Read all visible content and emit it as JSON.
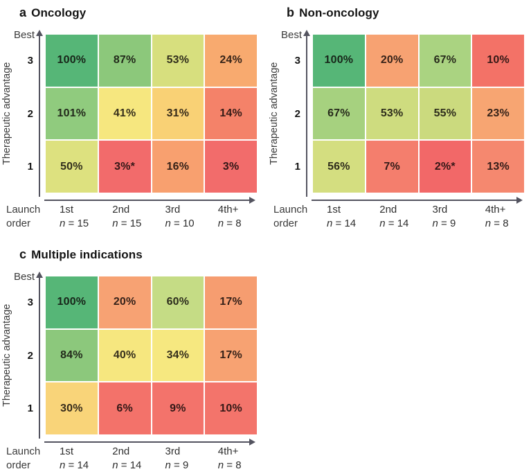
{
  "figure": {
    "axis_color": "#53535f",
    "background": "#ffffff"
  },
  "chart_data": [
    {
      "type": "heatmap",
      "panel": "a",
      "title": "Oncology",
      "xlabel": "Launch order",
      "ylabel": "Therapeutic advantage",
      "y_axis_top_annotation": "Best",
      "x_categories": [
        "1st (n = 15)",
        "2nd (n = 15)",
        "3rd (n = 10)",
        "4th+ (n = 8)"
      ],
      "y_categories": [
        "3",
        "2",
        "1"
      ],
      "values_percent": [
        [
          100,
          87,
          53,
          24
        ],
        [
          101,
          41,
          31,
          14
        ],
        [
          50,
          3,
          16,
          3
        ]
      ],
      "cell_labels": [
        [
          "100%",
          "87%",
          "53%",
          "24%"
        ],
        [
          "101%",
          "41%",
          "31%",
          "14%"
        ],
        [
          "50%",
          "3%*",
          "16%",
          "3%"
        ]
      ],
      "colorscale": "red-yellow-green increasing with value",
      "legend": "none"
    },
    {
      "type": "heatmap",
      "panel": "b",
      "title": "Non-oncology",
      "xlabel": "Launch order",
      "ylabel": "Therapeutic advantage",
      "y_axis_top_annotation": "Best",
      "x_categories": [
        "1st (n = 14)",
        "2nd (n = 14)",
        "3rd (n = 9)",
        "4th+ (n = 8)"
      ],
      "y_categories": [
        "3",
        "2",
        "1"
      ],
      "values_percent": [
        [
          100,
          20,
          67,
          10
        ],
        [
          67,
          53,
          55,
          23
        ],
        [
          56,
          7,
          2,
          13
        ]
      ],
      "cell_labels": [
        [
          "100%",
          "20%",
          "67%",
          "10%"
        ],
        [
          "67%",
          "53%",
          "55%",
          "23%"
        ],
        [
          "56%",
          "7%",
          "2%*",
          "13%"
        ]
      ],
      "colorscale": "red-yellow-green increasing with value",
      "legend": "none"
    },
    {
      "type": "heatmap",
      "panel": "c",
      "title": "Multiple indications",
      "xlabel": "Launch order",
      "ylabel": "Therapeutic advantage",
      "y_axis_top_annotation": "Best",
      "x_categories": [
        "1st (n = 14)",
        "2nd (n = 14)",
        "3rd (n = 9)",
        "4th+ (n = 8)"
      ],
      "y_categories": [
        "3",
        "2",
        "1"
      ],
      "values_percent": [
        [
          100,
          20,
          60,
          17
        ],
        [
          84,
          40,
          34,
          17
        ],
        [
          30,
          6,
          9,
          10
        ]
      ],
      "cell_labels": [
        [
          "100%",
          "20%",
          "60%",
          "17%"
        ],
        [
          "84%",
          "40%",
          "34%",
          "17%"
        ],
        [
          "30%",
          "6%",
          "9%",
          "10%"
        ]
      ],
      "colorscale": "red-yellow-green increasing with value",
      "legend": "none"
    }
  ],
  "panels": [
    {
      "letter": "a",
      "title": "Oncology",
      "best_label": "Best",
      "y_axis_label": "Therapeutic advantage",
      "y_ticks": [
        "3",
        "2",
        "1"
      ],
      "x_axis_label_line1": "Launch",
      "x_axis_label_line2": "order",
      "x_ticks": [
        {
          "rank": "1st",
          "n_var": "n",
          "n_eq": " = 15"
        },
        {
          "rank": "2nd",
          "n_var": "n",
          "n_eq": " = 15"
        },
        {
          "rank": "3rd",
          "n_var": "n",
          "n_eq": " = 10"
        },
        {
          "rank": "4th+",
          "n_var": "n",
          "n_eq": " = 8"
        }
      ],
      "rows": [
        {
          "cells": [
            {
              "label": "100%",
              "color": "#56b677"
            },
            {
              "label": "87%",
              "color": "#8cc87b"
            },
            {
              "label": "53%",
              "color": "#d7df7e"
            },
            {
              "label": "24%",
              "color": "#f8aa6f"
            }
          ]
        },
        {
          "cells": [
            {
              "label": "101%",
              "color": "#90cb7e"
            },
            {
              "label": "41%",
              "color": "#f6e77f"
            },
            {
              "label": "31%",
              "color": "#f9d175"
            },
            {
              "label": "14%",
              "color": "#f48269"
            }
          ]
        },
        {
          "cells": [
            {
              "label": "50%",
              "color": "#dde17f"
            },
            {
              "label": "3%*",
              "color": "#f26b6b"
            },
            {
              "label": "16%",
              "color": "#f8a06f"
            },
            {
              "label": "3%",
              "color": "#f26c6b"
            }
          ]
        }
      ]
    },
    {
      "letter": "b",
      "title": "Non-oncology",
      "best_label": "Best",
      "y_axis_label": "Therapeutic advantage",
      "y_ticks": [
        "3",
        "2",
        "1"
      ],
      "x_axis_label_line1": "Launch",
      "x_axis_label_line2": "order",
      "x_ticks": [
        {
          "rank": "1st",
          "n_var": "n",
          "n_eq": " = 14"
        },
        {
          "rank": "2nd",
          "n_var": "n",
          "n_eq": " = 14"
        },
        {
          "rank": "3rd",
          "n_var": "n",
          "n_eq": " = 9"
        },
        {
          "rank": "4th+",
          "n_var": "n",
          "n_eq": " = 8"
        }
      ],
      "rows": [
        {
          "cells": [
            {
              "label": "100%",
              "color": "#56b677"
            },
            {
              "label": "20%",
              "color": "#f7a272"
            },
            {
              "label": "67%",
              "color": "#aad381"
            },
            {
              "label": "10%",
              "color": "#f37267"
            }
          ]
        },
        {
          "cells": [
            {
              "label": "67%",
              "color": "#a6d17f"
            },
            {
              "label": "53%",
              "color": "#cedc7f"
            },
            {
              "label": "55%",
              "color": "#cbda7e"
            },
            {
              "label": "23%",
              "color": "#f7a572"
            }
          ]
        },
        {
          "cells": [
            {
              "label": "56%",
              "color": "#d4de80"
            },
            {
              "label": "7%",
              "color": "#f47e6d"
            },
            {
              "label": "2%*",
              "color": "#f26868"
            },
            {
              "label": "13%",
              "color": "#f5886f"
            }
          ]
        }
      ]
    },
    {
      "letter": "c",
      "title": "Multiple indications",
      "best_label": "Best",
      "y_axis_label": "Therapeutic advantage",
      "y_ticks": [
        "3",
        "2",
        "1"
      ],
      "x_axis_label_line1": "Launch",
      "x_axis_label_line2": "order",
      "x_ticks": [
        {
          "rank": "1st",
          "n_var": "n",
          "n_eq": " = 14"
        },
        {
          "rank": "2nd",
          "n_var": "n",
          "n_eq": " = 14"
        },
        {
          "rank": "3rd",
          "n_var": "n",
          "n_eq": " = 9"
        },
        {
          "rank": "4th+",
          "n_var": "n",
          "n_eq": " = 8"
        }
      ],
      "rows": [
        {
          "cells": [
            {
              "label": "100%",
              "color": "#56b677"
            },
            {
              "label": "20%",
              "color": "#f7a273"
            },
            {
              "label": "60%",
              "color": "#c5dc85"
            },
            {
              "label": "17%",
              "color": "#f69d70"
            }
          ]
        },
        {
          "cells": [
            {
              "label": "84%",
              "color": "#8cc87c"
            },
            {
              "label": "40%",
              "color": "#f6e77f"
            },
            {
              "label": "34%",
              "color": "#f6e880"
            },
            {
              "label": "17%",
              "color": "#f7a272"
            }
          ]
        },
        {
          "cells": [
            {
              "label": "30%",
              "color": "#f9d479"
            },
            {
              "label": "6%",
              "color": "#f3726a"
            },
            {
              "label": "9%",
              "color": "#f3736b"
            },
            {
              "label": "10%",
              "color": "#f3746b"
            }
          ]
        }
      ]
    }
  ]
}
